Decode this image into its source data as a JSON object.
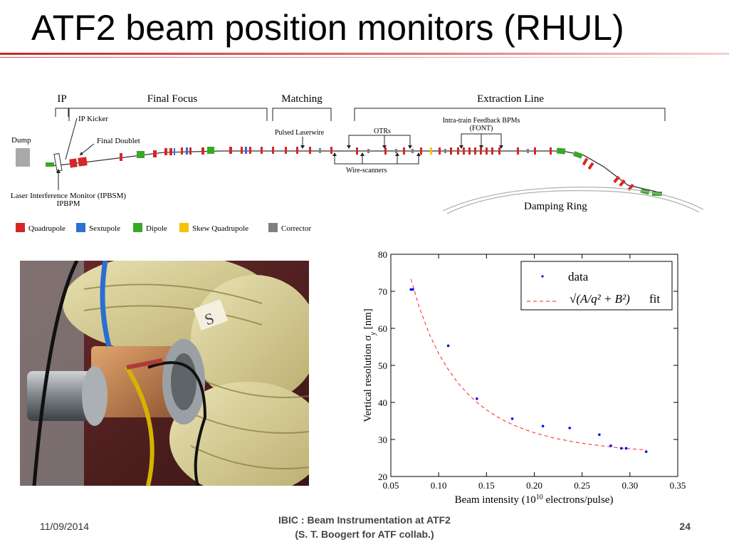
{
  "slide": {
    "title": "ATF2 beam position monitors (RHUL)",
    "footer_date": "11/09/2014",
    "footer_center_line1": "IBIC : Beam Instrumentation at ATF2",
    "footer_center_line2": "(S. T. Boogert for ATF collab.)",
    "page_number": "24"
  },
  "diagram": {
    "sections": {
      "ip": "IP",
      "final_focus": "Final Focus",
      "matching": "Matching",
      "extraction_line": "Extraction Line"
    },
    "labels": {
      "dump": "Dump",
      "ip_kicker": "IP Kicker",
      "final_doublet": "Final Doublet",
      "pulsed_laserwire": "Pulsed Laserwire",
      "otrs": "OTRs",
      "feedback_line1": "Intra-train Feedback BPMs",
      "feedback_line2": "(FONT)",
      "wire_scanners": "Wire-scanners",
      "ipbsm": "Laser Interference Monitor (IPBSM)",
      "ipbpm": "IPBPM",
      "damping_ring": "Damping Ring"
    },
    "legend": [
      {
        "label": "Quadrupole",
        "color": "#d62728"
      },
      {
        "label": "Sextupole",
        "color": "#2f6fd6"
      },
      {
        "label": "Dipole",
        "color": "#3aa827"
      },
      {
        "label": "Skew Quadrupole",
        "color": "#f2c500"
      },
      {
        "label": "Corrector",
        "color": "#7f7f7f"
      }
    ]
  },
  "chart_data": {
    "type": "scatter",
    "xlabel": "Beam intensity (10",
    "xlabel_sup": "10",
    "xlabel_end": " electrons/pulse)",
    "ylabel": "Vertical resolution σ",
    "ylabel_sub": "y",
    "ylabel_end": " [nm]",
    "xlim": [
      0.05,
      0.35
    ],
    "ylim": [
      20,
      80
    ],
    "xticks": [
      0.05,
      0.1,
      0.15,
      0.2,
      0.25,
      0.3,
      0.35
    ],
    "xtick_labels": [
      "0.05",
      "0.10",
      "0.15",
      "0.20",
      "0.25",
      "0.30",
      "0.35"
    ],
    "yticks": [
      20,
      30,
      40,
      50,
      60,
      70,
      80
    ],
    "ytick_labels": [
      "20",
      "30",
      "40",
      "50",
      "60",
      "70",
      "80"
    ],
    "legend_position": "top-right",
    "series": [
      {
        "name": "data",
        "kind": "points",
        "color": "#0000ff",
        "x": [
          0.071,
          0.073,
          0.11,
          0.14,
          0.177,
          0.209,
          0.237,
          0.268,
          0.28,
          0.291,
          0.296,
          0.317
        ],
        "y": [
          70.5,
          70.5,
          55.3,
          41.0,
          35.6,
          33.6,
          33.1,
          31.3,
          28.3,
          27.6,
          27.6,
          26.7
        ]
      },
      {
        "name": "fit",
        "legend_math": "√(A/q² + B²)",
        "kind": "dashed-line",
        "color": "#ff2020",
        "x": [
          0.071,
          0.08,
          0.09,
          0.1,
          0.11,
          0.12,
          0.13,
          0.14,
          0.15,
          0.16,
          0.17,
          0.18,
          0.19,
          0.2,
          0.21,
          0.22,
          0.23,
          0.24,
          0.25,
          0.26,
          0.27,
          0.28,
          0.29,
          0.3,
          0.31,
          0.317
        ],
        "y": [
          73.3,
          65.5,
          58.6,
          53.2,
          48.9,
          45.3,
          42.4,
          40.0,
          38.0,
          36.3,
          34.9,
          33.7,
          32.7,
          31.8,
          31.1,
          30.4,
          29.9,
          29.4,
          29.0,
          28.6,
          28.3,
          28.0,
          27.7,
          27.5,
          27.3,
          27.2
        ]
      }
    ]
  }
}
